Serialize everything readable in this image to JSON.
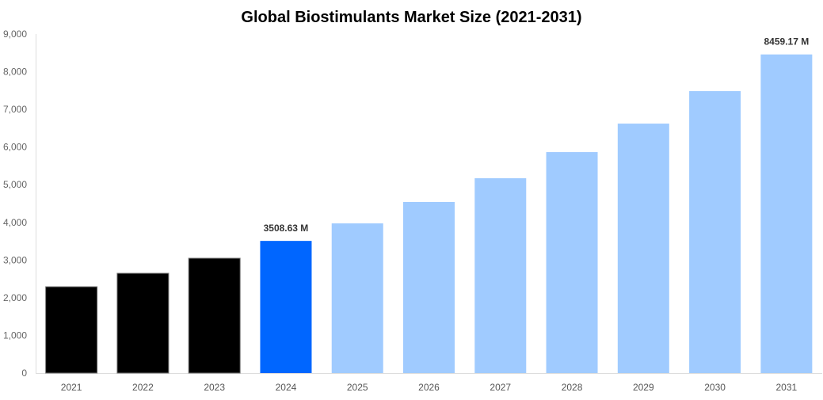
{
  "chart_data": {
    "type": "bar",
    "title": "Global Biostimulants Market Size (2021-2031)",
    "xlabel": "",
    "ylabel": "",
    "ylim": [
      0,
      9000
    ],
    "yticks": [
      "0",
      "1,000",
      "2,000",
      "3,000",
      "4,000",
      "5,000",
      "6,000",
      "7,000",
      "8,000",
      "9,000"
    ],
    "grid": false,
    "categories": [
      "2021",
      "2022",
      "2023",
      "2024",
      "2025",
      "2026",
      "2027",
      "2028",
      "2029",
      "2030",
      "2031"
    ],
    "values": [
      2292,
      2649,
      3049,
      3508.63,
      3974,
      4542,
      5172,
      5866,
      6623,
      7485,
      8459.17
    ],
    "bar_colors": [
      "#000000",
      "#000000",
      "#000000",
      "#0066ff",
      "#a0cbff",
      "#a0cbff",
      "#a0cbff",
      "#a0cbff",
      "#a0cbff",
      "#a0cbff",
      "#a0cbff"
    ],
    "data_labels": [
      {
        "index": 3,
        "text": "3508.63 M"
      },
      {
        "index": 10,
        "text": "8459.17 M"
      }
    ]
  }
}
